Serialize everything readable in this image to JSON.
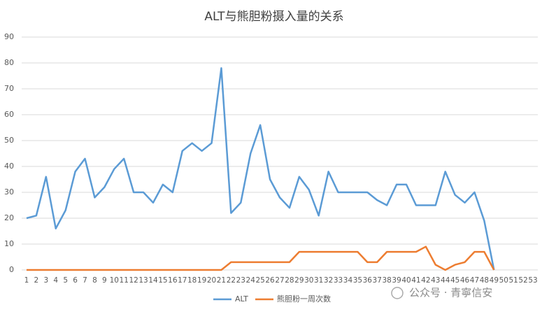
{
  "chart_data": {
    "type": "line",
    "title": "ALT与熊胆粉摄入量的关系",
    "categories": [
      1,
      2,
      3,
      4,
      5,
      6,
      7,
      8,
      9,
      10,
      11,
      12,
      13,
      14,
      15,
      16,
      17,
      18,
      19,
      20,
      21,
      22,
      23,
      24,
      25,
      26,
      27,
      28,
      29,
      30,
      31,
      32,
      33,
      34,
      35,
      36,
      37,
      38,
      39,
      40,
      41,
      42,
      43,
      44,
      45,
      46,
      47,
      48,
      49,
      50,
      51,
      52,
      53
    ],
    "series": [
      {
        "name": "ALT",
        "color": "#5b9bd5",
        "values": [
          20,
          21,
          36,
          16,
          23,
          38,
          43,
          28,
          32,
          39,
          43,
          30,
          30,
          26,
          33,
          30,
          46,
          49,
          46,
          49,
          78,
          22,
          26,
          45,
          56,
          35,
          28,
          24,
          36,
          31,
          21,
          38,
          30,
          30,
          30,
          30,
          27,
          25,
          33,
          33,
          25,
          25,
          25,
          38,
          29,
          26,
          30,
          19,
          0,
          null,
          null,
          null,
          null
        ]
      },
      {
        "name": "熊胆粉一周次数",
        "color": "#ed7d31",
        "values": [
          0,
          0,
          0,
          0,
          0,
          0,
          0,
          0,
          0,
          0,
          0,
          0,
          0,
          0,
          0,
          0,
          0,
          0,
          0,
          0,
          0,
          3,
          3,
          3,
          3,
          3,
          3,
          3,
          7,
          7,
          7,
          7,
          7,
          7,
          7,
          3,
          3,
          7,
          7,
          7,
          7,
          9,
          2,
          0,
          2,
          3,
          7,
          7,
          0,
          null,
          null,
          null,
          null
        ]
      }
    ],
    "ylim": [
      0,
      90
    ],
    "yticks": [
      0,
      10,
      20,
      30,
      40,
      50,
      60,
      70,
      80,
      90
    ],
    "grid": true,
    "legend": "bottom",
    "watermark": "公众号 · 青寧信安"
  }
}
